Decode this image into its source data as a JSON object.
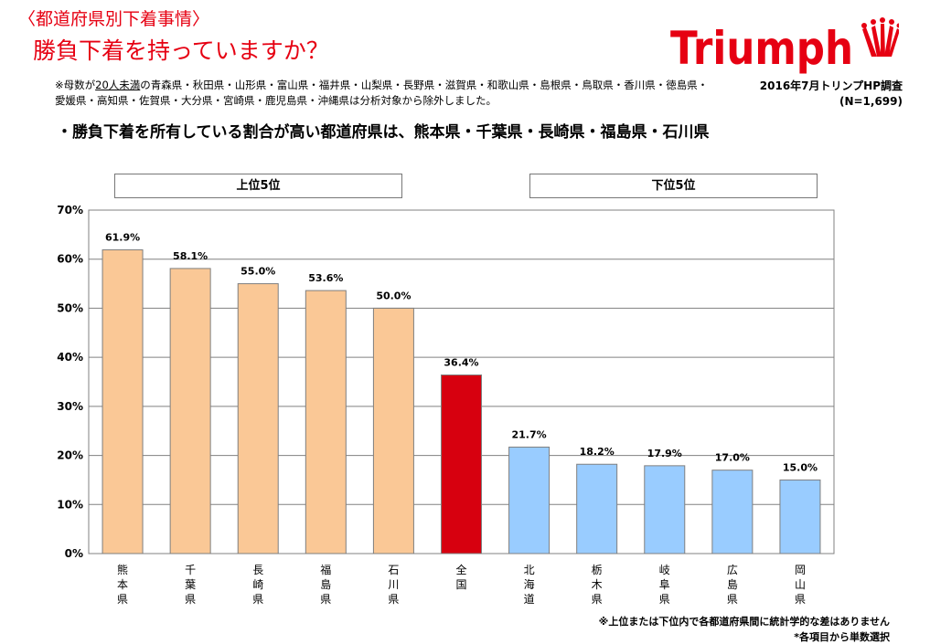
{
  "header": {
    "category": "〈都道府県別下着事情〉",
    "title": "勝負下着を持っていますか？"
  },
  "logo": {
    "text": "Triumph",
    "icon": "crown-icon"
  },
  "note": {
    "prefix": "※母数が",
    "underlined": "20人未満",
    "rest": "の青森県・秋田県・山形県・富山県・福井県・山梨県・長野県・滋賀県・和歌山県・島根県・鳥取県・香川県・徳島県・愛媛県・高知県・佐賀県・大分県・宮崎県・鹿児島県・沖縄県は分析対象から除外しました。"
  },
  "survey": {
    "source": "2016年7月トリンプHP調査",
    "n": "(N=1,699)"
  },
  "headline": "・勝負下着を所有している割合が高い都道府県は、熊本県・千葉県・長崎県・福島県・石川県",
  "groups": {
    "top": "上位5位",
    "bottom": "下位5位"
  },
  "footnotes": {
    "stat": "※上位または下位内で各都道府県間に統計学的な差はありません",
    "single": "*各項目から単数選択"
  },
  "colors": {
    "top": "#fac896",
    "national": "#d7000f",
    "bottom": "#99ccff",
    "title": "#e60012",
    "logo": "#e60012"
  },
  "chart_data": {
    "type": "bar",
    "unit": "%",
    "ylim": [
      0,
      70
    ],
    "yticks": [
      "0%",
      "10%",
      "20%",
      "30%",
      "40%",
      "50%",
      "60%",
      "70%"
    ],
    "grid": true,
    "categories": [
      "熊本県",
      "千葉県",
      "長崎県",
      "福島県",
      "石川県",
      "全国",
      "北海道",
      "栃木県",
      "岐阜県",
      "広島県",
      "岡山県"
    ],
    "values": [
      61.9,
      58.1,
      55.0,
      53.6,
      50.0,
      36.4,
      21.7,
      18.2,
      17.9,
      17.0,
      15.0
    ],
    "labels": [
      "61.9%",
      "58.1%",
      "55.0%",
      "53.6%",
      "50.0%",
      "36.4%",
      "21.7%",
      "18.2%",
      "17.9%",
      "17.0%",
      "15.0%"
    ],
    "groups": [
      "top",
      "top",
      "top",
      "top",
      "top",
      "national",
      "bottom",
      "bottom",
      "bottom",
      "bottom",
      "bottom"
    ]
  }
}
